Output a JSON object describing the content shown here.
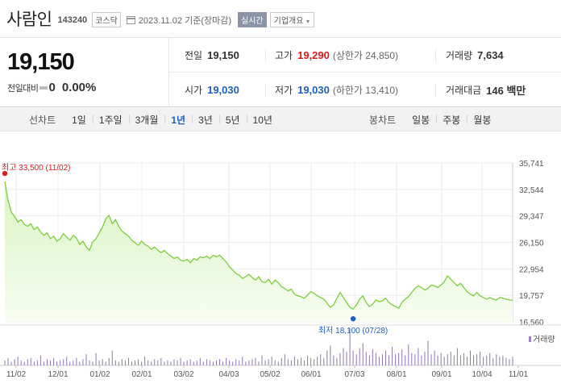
{
  "header": {
    "company": "사람인",
    "code": "143240",
    "market": "코스닥",
    "date": "2023.11.02 기준(장마감)",
    "realtime": "실시간",
    "corp_info": "기업개요"
  },
  "price": {
    "current": "19,150",
    "change_label": "전일대비",
    "change": "0",
    "change_pct": "0.00%"
  },
  "stats": {
    "prev_label": "전일",
    "prev": "19,150",
    "high_label": "고가",
    "high": "19,290",
    "upper_limit": "(상한가 24,850)",
    "volume_label": "거래량",
    "volume": "7,634",
    "open_label": "시가",
    "open": "19,030",
    "low_label": "저가",
    "low": "19,030",
    "lower_limit": "(하한가 13,410)",
    "amount_label": "거래대금",
    "amount": "146 백만"
  },
  "tabs": {
    "line_label": "선차트",
    "line_periods": [
      "1일",
      "1주일",
      "3개월",
      "1년",
      "3년",
      "5년",
      "10년"
    ],
    "selected": "1년",
    "candle_label": "봉차트",
    "candle_periods": [
      "일봉",
      "주봉",
      "월봉"
    ]
  },
  "colors": {
    "up": "#e01a1a",
    "down": "#1d5fc9",
    "line": "#7dcf3a",
    "area": "#d8f3c3"
  },
  "chart_data": {
    "type": "area",
    "y_ticks": [
      "35,741",
      "32,544",
      "29,347",
      "26,150",
      "22,954",
      "19,757",
      "16,560"
    ],
    "ylim": [
      16560,
      35741
    ],
    "x_ticks": [
      "11/02",
      "12/01",
      "01/02",
      "02/01",
      "03/02",
      "04/03",
      "05/02",
      "06/01",
      "07/03",
      "08/01",
      "09/01",
      "10/04",
      "11/01"
    ],
    "high_annotation": "최고 33,500 (11/02)",
    "low_annotation": "최저 18,100 (07/28)",
    "volume_legend": "거래량",
    "prices": [
      33500,
      31200,
      29800,
      29300,
      28600,
      28900,
      28300,
      28100,
      28400,
      27700,
      28000,
      27400,
      27000,
      27300,
      26600,
      26900,
      26300,
      26600,
      27200,
      26800,
      26400,
      27000,
      26700,
      25900,
      26300,
      25600,
      25200,
      26200,
      26600,
      27300,
      28000,
      29000,
      29400,
      28400,
      28900,
      28100,
      27500,
      27200,
      26900,
      26400,
      26100,
      25800,
      26300,
      25900,
      25700,
      25300,
      25600,
      25200,
      24900,
      25200,
      24800,
      24500,
      24200,
      24400,
      24000,
      23900,
      24100,
      23700,
      24200,
      24000,
      24400,
      24300,
      24500,
      24200,
      24600,
      24400,
      24600,
      24200,
      23800,
      23200,
      22800,
      22400,
      22200,
      21800,
      22000,
      22300,
      21900,
      21600,
      22000,
      21400,
      21300,
      21700,
      21100,
      21600,
      21300,
      20800,
      20600,
      20300,
      20500,
      19900,
      19700,
      19600,
      19400,
      19800,
      20200,
      20000,
      19700,
      19500,
      19300,
      18800,
      18300,
      18600,
      19400,
      20100,
      19500,
      18900,
      18300,
      18100,
      18600,
      19300,
      19700,
      18900,
      18400,
      18700,
      19200,
      19000,
      19100,
      19400,
      18900,
      18600,
      18400,
      18200,
      18900,
      19300,
      19600,
      20100,
      20600,
      20900,
      20700,
      20400,
      20600,
      21000,
      20900,
      20700,
      21000,
      21400,
      22100,
      21700,
      21300,
      20900,
      21200,
      20700,
      20200,
      19900,
      19700,
      20100,
      19700,
      19500,
      19300,
      19500,
      19300,
      19200,
      19500,
      19400,
      19300,
      19200,
      19150
    ],
    "volumes": [
      4,
      6,
      3,
      5,
      7,
      4,
      3,
      5,
      6,
      3,
      4,
      8,
      3,
      5,
      4,
      6,
      3,
      4,
      5,
      7,
      3,
      4,
      6,
      3,
      5,
      9,
      4,
      3,
      10,
      4,
      5,
      3,
      6,
      12,
      4,
      3,
      5,
      4,
      6,
      3,
      4,
      5,
      3,
      7,
      4,
      3,
      5,
      4,
      6,
      3,
      4,
      3,
      5,
      4,
      6,
      3,
      4,
      5,
      3,
      4,
      6,
      3,
      5,
      4,
      3,
      4,
      5,
      3,
      6,
      4,
      3,
      5,
      4,
      7,
      3,
      4,
      5,
      6,
      3,
      8,
      4,
      5,
      7,
      4,
      3,
      6,
      9,
      5,
      4,
      7,
      5,
      6,
      4,
      8,
      6,
      5,
      7,
      9,
      6,
      12,
      16,
      8,
      6,
      10,
      14,
      11,
      30,
      12,
      9,
      14,
      18,
      11,
      8,
      13,
      10,
      7,
      9,
      12,
      8,
      15,
      9,
      10,
      13,
      8,
      17,
      10,
      9,
      14,
      8,
      11,
      20,
      9,
      12,
      8,
      10,
      7,
      9,
      11,
      8,
      14,
      8,
      10,
      7,
      12,
      8,
      9,
      11,
      7,
      8,
      10,
      6,
      9,
      7,
      8,
      6,
      5,
      7
    ]
  }
}
